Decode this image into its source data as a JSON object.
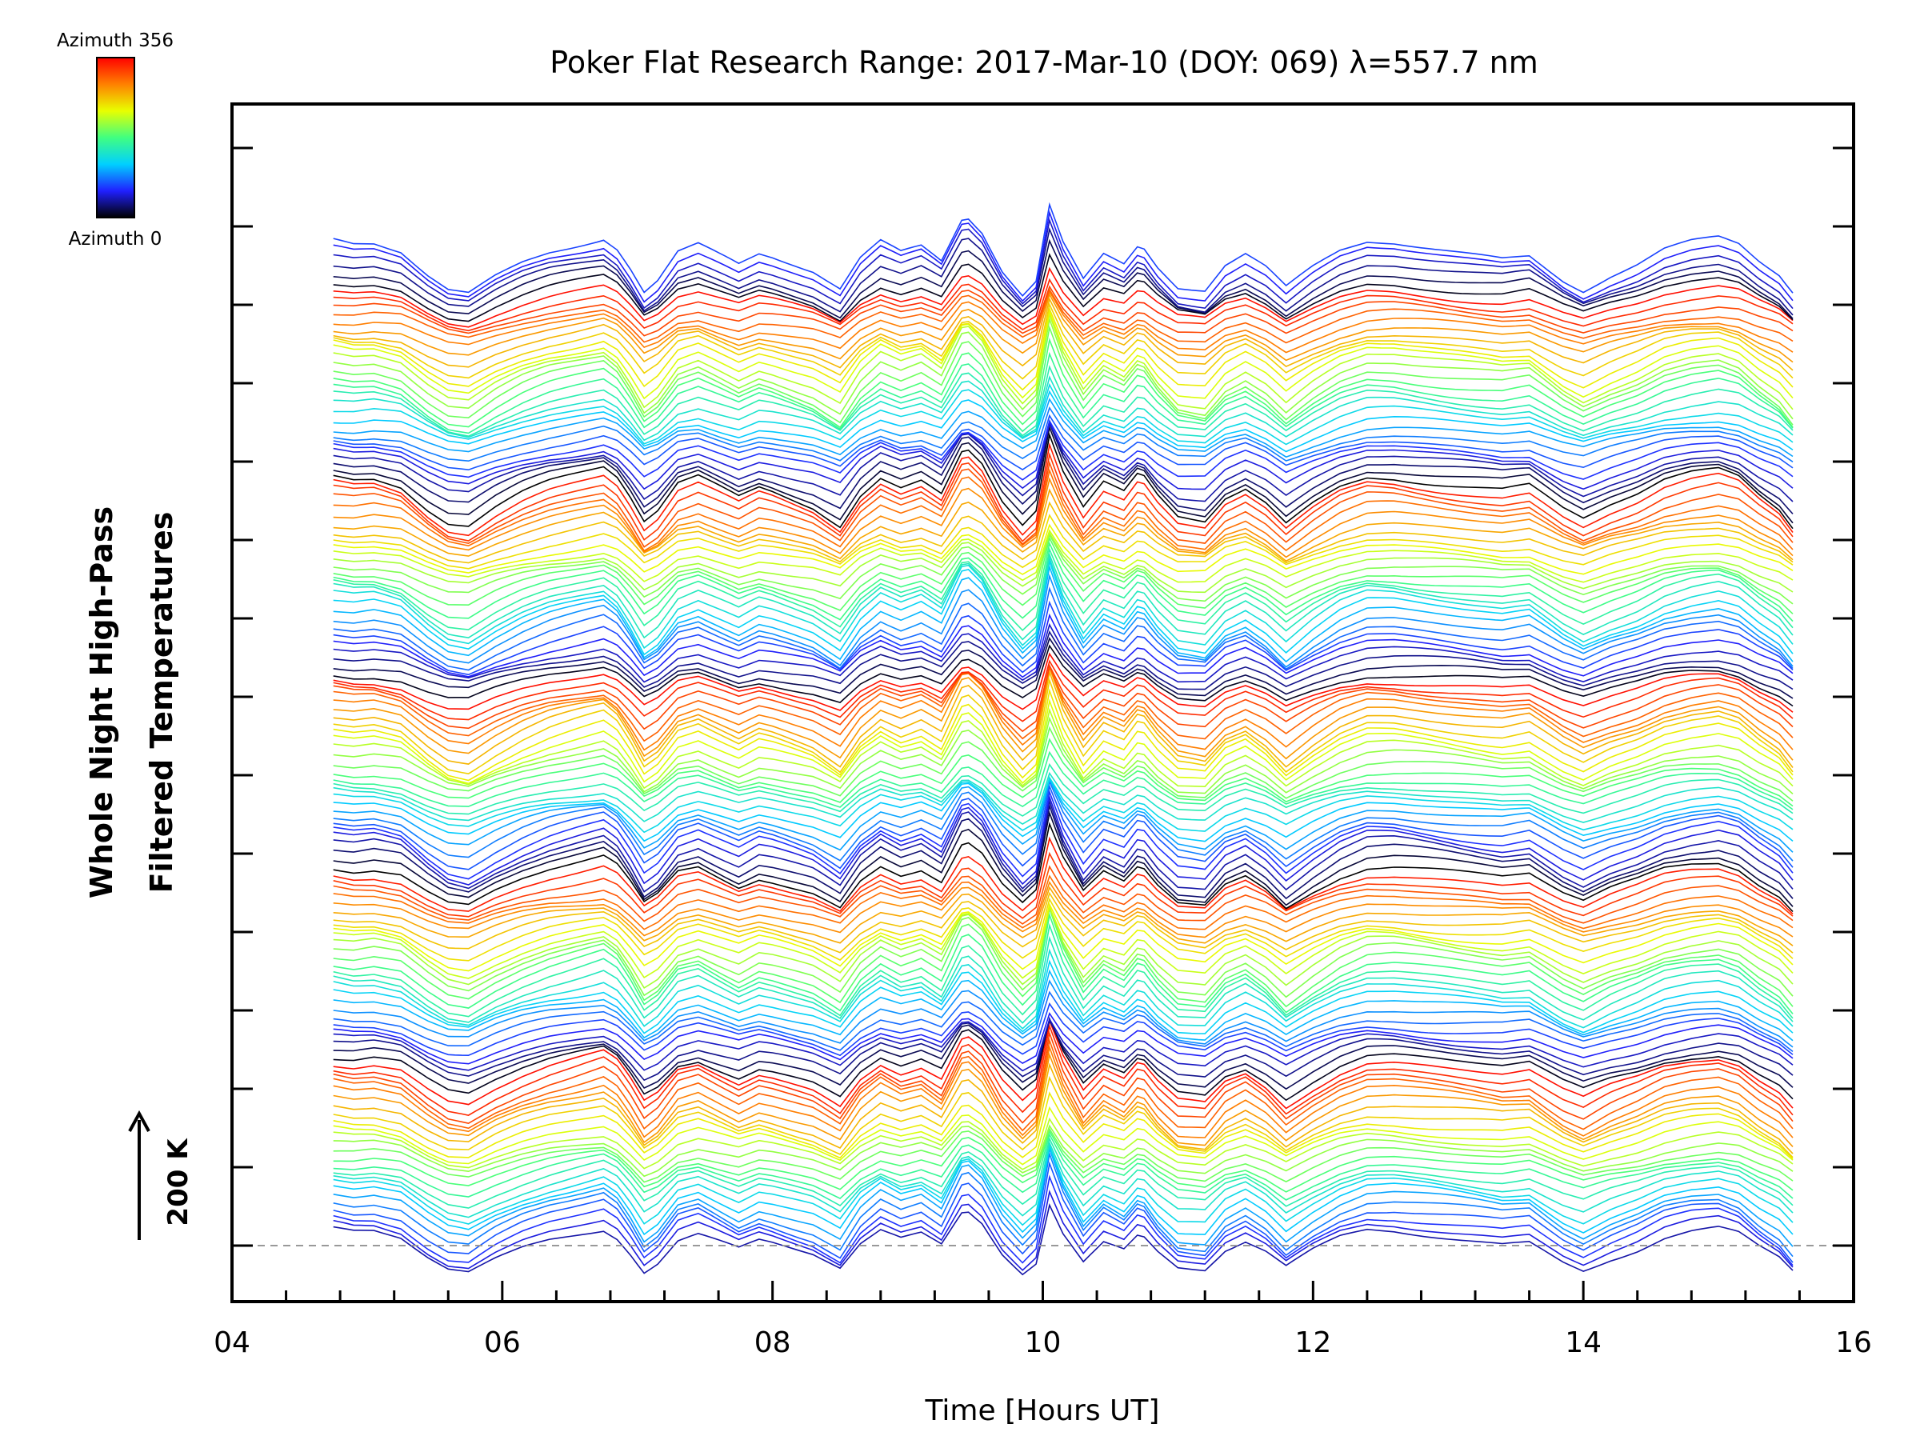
{
  "chart_data": {
    "type": "line",
    "title": "Poker Flat Research Range: 2017-Mar-10 (DOY: 069) λ=557.7 nm",
    "xlabel": "Time [Hours UT]",
    "ylabel_line1": "Whole Night High-Pass",
    "ylabel_line2": "Filtered Temperatures",
    "scale_label": "200 K",
    "xlim": [
      4,
      16
    ],
    "x_ticks": [
      "04",
      "06",
      "08",
      "10",
      "12",
      "14",
      "16"
    ],
    "x_tick_values": [
      4,
      6,
      8,
      10,
      12,
      14,
      16
    ],
    "data_start_hour": 4.75,
    "data_end_hour": 15.55,
    "series_count": 141,
    "series_offset_k": 20,
    "baseline_dashed": true,
    "colorbar": {
      "top_label": "Azimuth 356",
      "bottom_label": "Azimuth 0",
      "min": 0,
      "max": 356,
      "colors": [
        "#000000",
        "#2020ff",
        "#00d0ff",
        "#40ff80",
        "#e8ff00",
        "#ff8000",
        "#ff0000"
      ]
    },
    "trace_profile": {
      "x": [
        4.75,
        4.9,
        5.05,
        5.25,
        5.45,
        5.6,
        5.75,
        5.95,
        6.15,
        6.35,
        6.55,
        6.75,
        6.85,
        6.95,
        7.05,
        7.15,
        7.3,
        7.45,
        7.6,
        7.75,
        7.9,
        8.0,
        8.15,
        8.3,
        8.5,
        8.65,
        8.8,
        8.95,
        9.1,
        9.25,
        9.42,
        9.55,
        9.7,
        9.85,
        9.95,
        10.05,
        10.15,
        10.3,
        10.45,
        10.6,
        10.72,
        10.85,
        11.0,
        11.2,
        11.35,
        11.5,
        11.65,
        11.8,
        12.0,
        12.2,
        12.4,
        12.6,
        12.8,
        13.0,
        13.2,
        13.4,
        13.6,
        13.85,
        14.0,
        14.2,
        14.4,
        14.6,
        14.8,
        15.0,
        15.15,
        15.3,
        15.45,
        15.55
      ],
      "y": [
        10,
        8,
        9,
        5,
        -8,
        -16,
        -18,
        -8,
        0,
        6,
        10,
        14,
        8,
        -4,
        -18,
        -12,
        4,
        8,
        2,
        -4,
        2,
        0,
        -4,
        -8,
        -18,
        0,
        10,
        4,
        8,
        0,
        28,
        18,
        -4,
        -18,
        -10,
        34,
        12,
        -10,
        4,
        -2,
        10,
        -4,
        -16,
        -18,
        -4,
        2,
        -6,
        -18,
        -6,
        4,
        10,
        10,
        8,
        6,
        4,
        2,
        4,
        -10,
        -16,
        -8,
        -2,
        6,
        10,
        12,
        8,
        -2,
        -10,
        -20
      ]
    }
  }
}
